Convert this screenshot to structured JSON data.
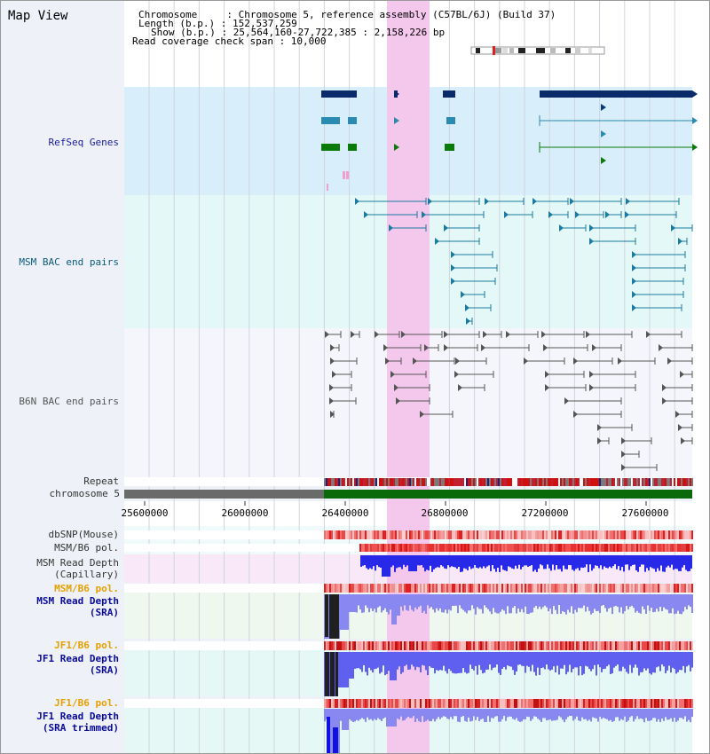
{
  "title": "Map View",
  "info": {
    "chromosome": "Chromosome     : Chromosome 5, reference assembly (C57BL/6J) (Build 37)",
    "length": "Length (b.p.) : 152,537,259",
    "show": "Show (b.p.) : 25,564,160-27,722,385 : 2,158,226 bp",
    "span": "Read coverage check span : 10,000"
  },
  "tracks": {
    "refseq": "RefSeq Genes",
    "msm_bac": "MSM BAC end pairs",
    "b6n_bac": "B6N BAC end pairs",
    "repeat": "Repeat",
    "chromosome": "chromosome 5",
    "dbsnp": "dbSNP(Mouse)",
    "msm_b6_pol_1": "MSM/B6 pol.",
    "msm_depth_cap_1": "MSM Read Depth",
    "msm_depth_cap_2": "(Capillary)",
    "msm_b6_pol_2": "MSM/B6 pol.",
    "msm_depth_sra_1": "MSM Read Depth",
    "msm_depth_sra_2": "(SRA)",
    "jf1_b6_pol_1": "JF1/B6 pol.",
    "jf1_depth_sra_1": "JF1 Read Depth",
    "jf1_depth_sra_2": "(SRA)",
    "jf1_b6_pol_2": "JF1/B6 pol.",
    "jf1_depth_trim_1": "JF1 Read Depth",
    "jf1_depth_trim_2": "(SRA trimmed)"
  },
  "axis_ticks": [
    "25600000",
    "26000000",
    "26400000",
    "26800000",
    "27200000",
    "27600000"
  ],
  "colors": {
    "refseq_label": "#1a1a9a",
    "msm_bac_label": "#0a5a7a",
    "b6n_label": "#555555",
    "pol_label": "#e8a000",
    "depth_label": "#0a0a9a",
    "highlight": "#f8d8f0",
    "chrom_band": "#0a6a0a",
    "depth_bar": "#2020e0",
    "depth_dark": "#202020"
  }
}
